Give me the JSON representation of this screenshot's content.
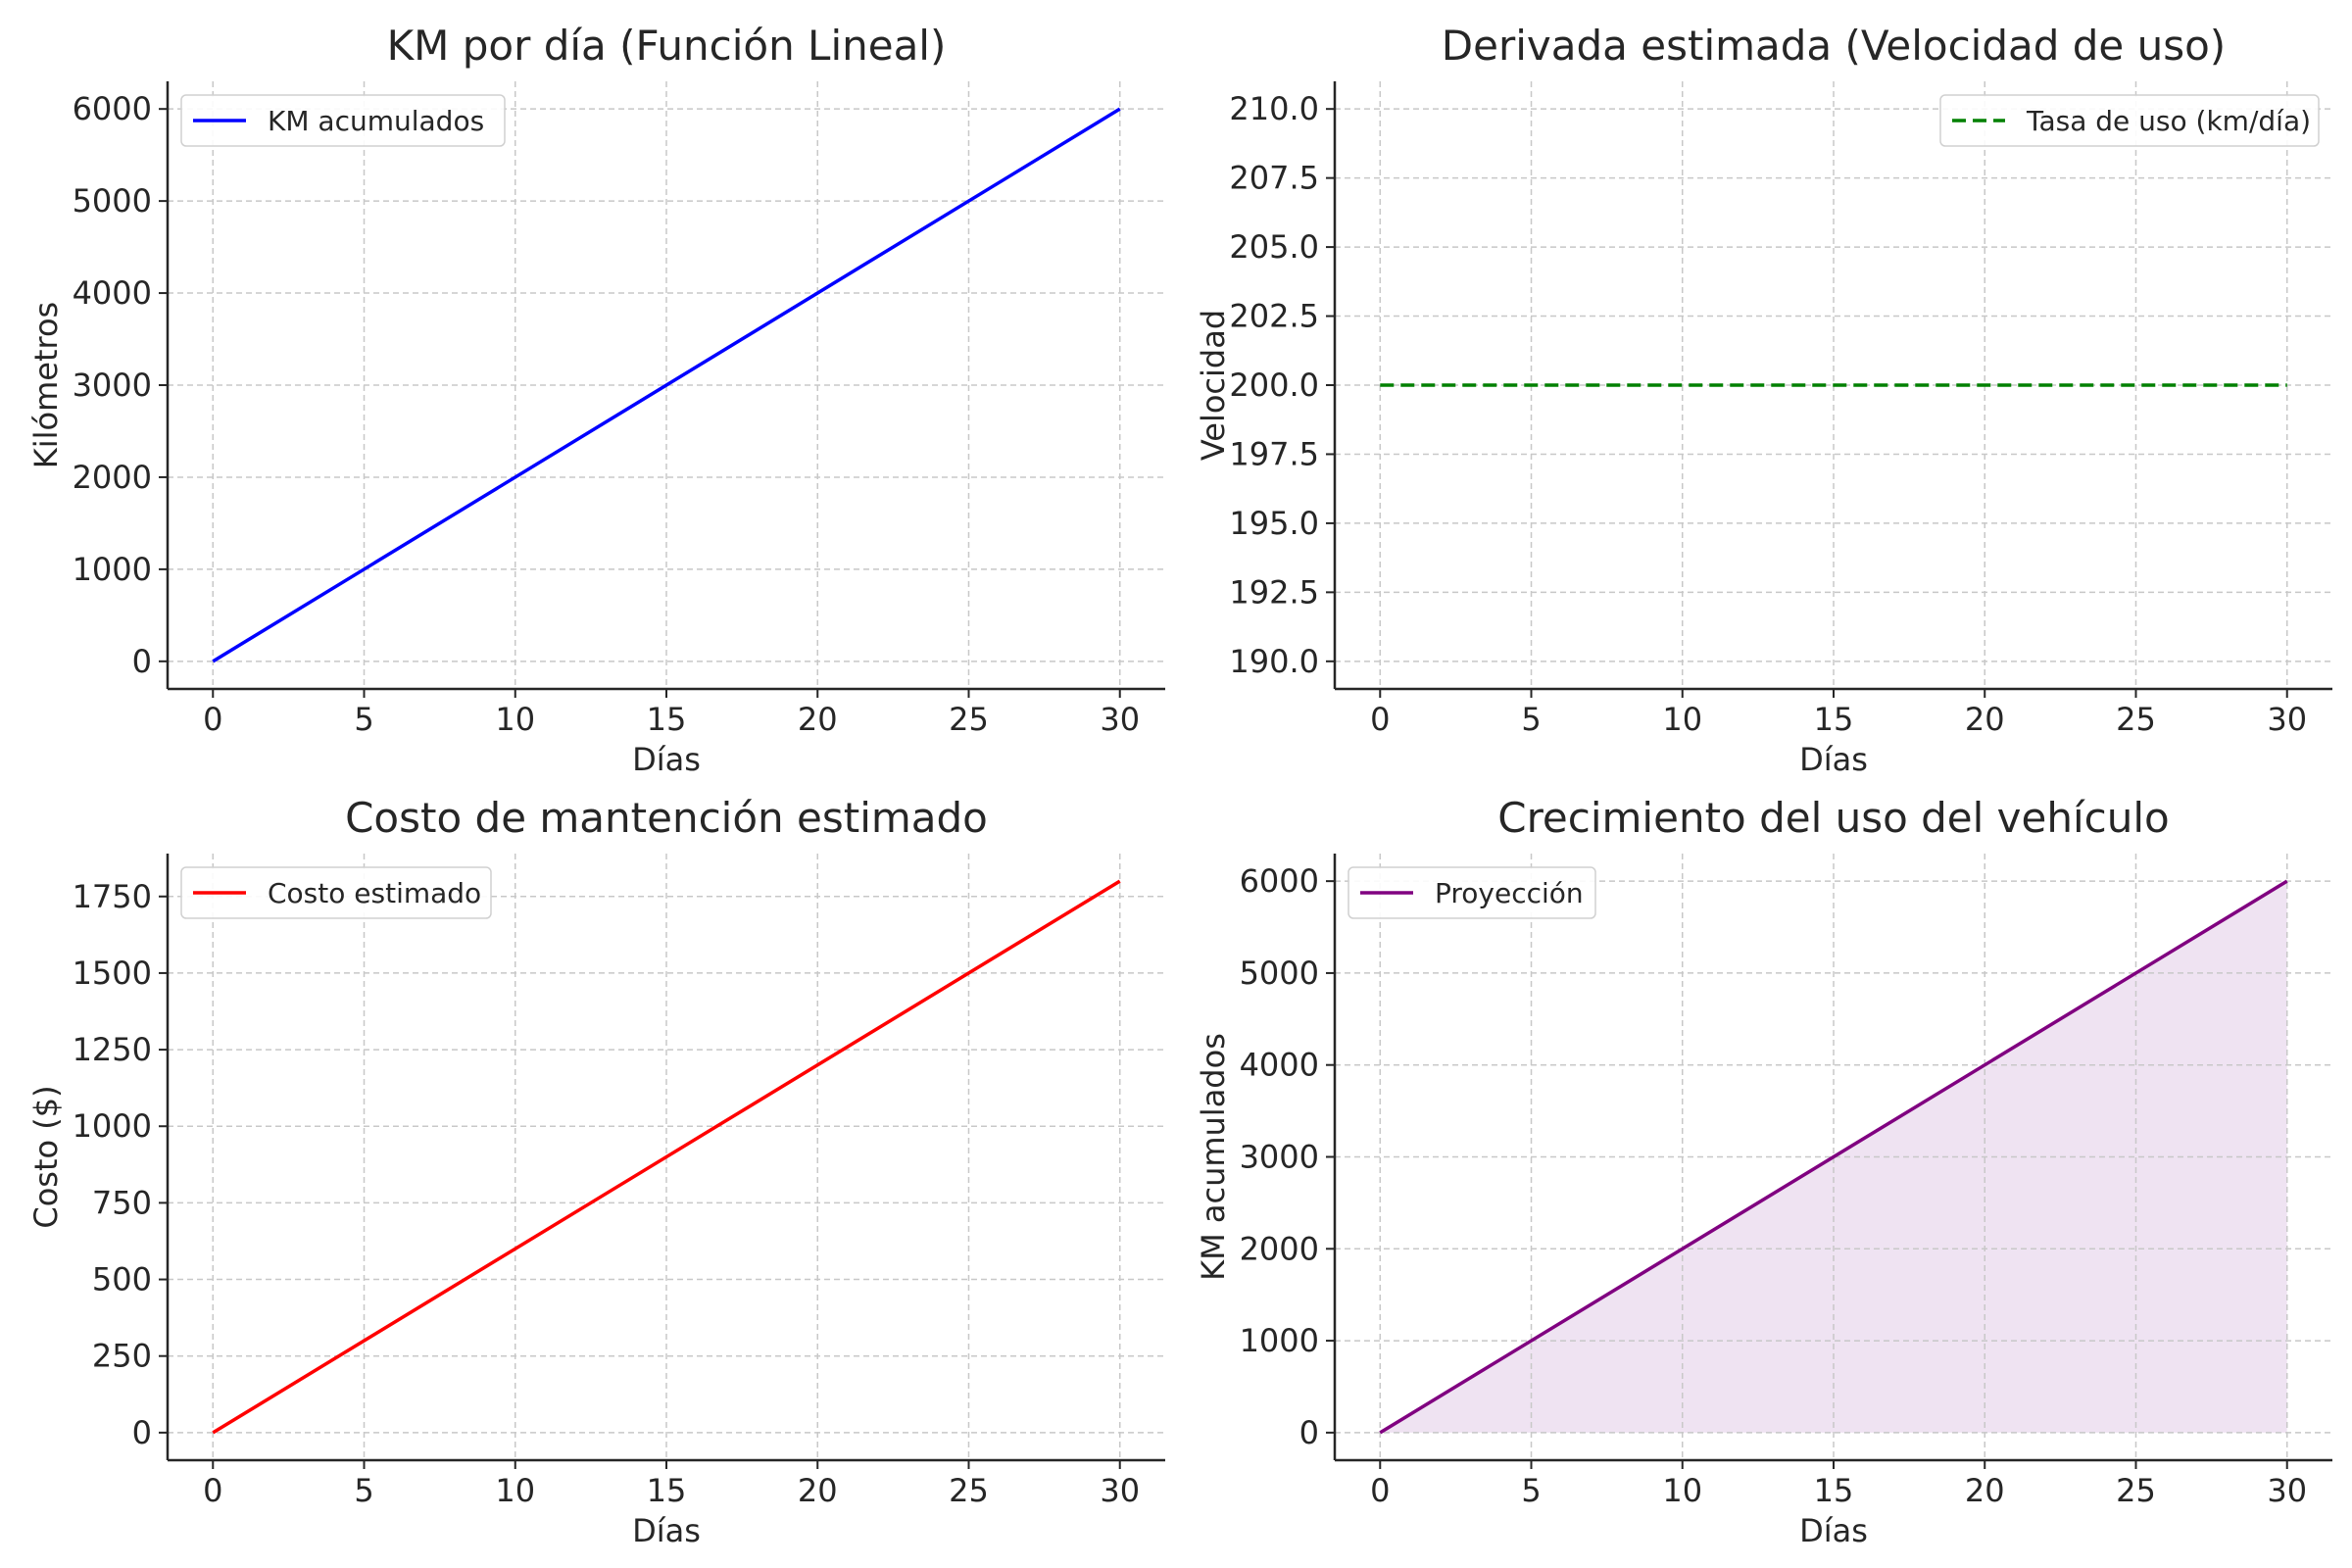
{
  "chart_data": [
    {
      "type": "line",
      "title": "KM por día (Función Lineal)",
      "xlabel": "Días",
      "ylabel": "Kilómetros",
      "xlim": [
        -1.5,
        31.5
      ],
      "ylim": [
        -300,
        6300
      ],
      "xticks": [
        0,
        5,
        10,
        15,
        20,
        25,
        30
      ],
      "yticks": [
        0,
        1000,
        2000,
        3000,
        4000,
        5000,
        6000
      ],
      "ytick_labels": [
        "0",
        "1000",
        "2000",
        "3000",
        "4000",
        "5000",
        "6000"
      ],
      "grid": true,
      "legend_position": "top-left",
      "series": [
        {
          "name": "KM acumulados",
          "color": "#0000ff",
          "dash": "solid",
          "fill": false,
          "x": [
            0,
            30
          ],
          "y": [
            0,
            6000
          ]
        }
      ]
    },
    {
      "type": "line",
      "title": "Derivada estimada (Velocidad de uso)",
      "xlabel": "Días",
      "ylabel": "Velocidad",
      "xlim": [
        -1.5,
        31.5
      ],
      "ylim": [
        189,
        211
      ],
      "xticks": [
        0,
        5,
        10,
        15,
        20,
        25,
        30
      ],
      "yticks": [
        190,
        192.5,
        195,
        197.5,
        200,
        202.5,
        205,
        207.5,
        210
      ],
      "ytick_labels": [
        "190.0",
        "192.5",
        "195.0",
        "197.5",
        "200.0",
        "202.5",
        "205.0",
        "207.5",
        "210.0"
      ],
      "grid": true,
      "legend_position": "top-right",
      "series": [
        {
          "name": "Tasa de uso (km/día)",
          "color": "#008000",
          "dash": "dashed",
          "fill": false,
          "x": [
            0,
            30
          ],
          "y": [
            200,
            200
          ]
        }
      ]
    },
    {
      "type": "line",
      "title": "Costo de mantención estimado",
      "xlabel": "Días",
      "ylabel": "Costo ($)",
      "xlim": [
        -1.5,
        31.5
      ],
      "ylim": [
        -90,
        1890
      ],
      "xticks": [
        0,
        5,
        10,
        15,
        20,
        25,
        30
      ],
      "yticks": [
        0,
        250,
        500,
        750,
        1000,
        1250,
        1500,
        1750
      ],
      "ytick_labels": [
        "0",
        "250",
        "500",
        "750",
        "1000",
        "1250",
        "1500",
        "1750"
      ],
      "grid": true,
      "legend_position": "top-left",
      "series": [
        {
          "name": "Costo estimado",
          "color": "#ff0000",
          "dash": "solid",
          "fill": false,
          "x": [
            0,
            30
          ],
          "y": [
            0,
            1800
          ]
        }
      ]
    },
    {
      "type": "area",
      "title": "Crecimiento del uso del vehículo",
      "xlabel": "Días",
      "ylabel": "KM acumulados",
      "xlim": [
        -1.5,
        31.5
      ],
      "ylim": [
        -300,
        6300
      ],
      "xticks": [
        0,
        5,
        10,
        15,
        20,
        25,
        30
      ],
      "yticks": [
        0,
        1000,
        2000,
        3000,
        4000,
        5000,
        6000
      ],
      "ytick_labels": [
        "0",
        "1000",
        "2000",
        "3000",
        "4000",
        "5000",
        "6000"
      ],
      "grid": true,
      "legend_position": "top-left",
      "series": [
        {
          "name": "Proyección",
          "color": "#800080",
          "dash": "solid",
          "fill": true,
          "fill_color": "#efe3f2",
          "x": [
            0,
            30
          ],
          "y": [
            0,
            6000
          ]
        }
      ]
    }
  ]
}
